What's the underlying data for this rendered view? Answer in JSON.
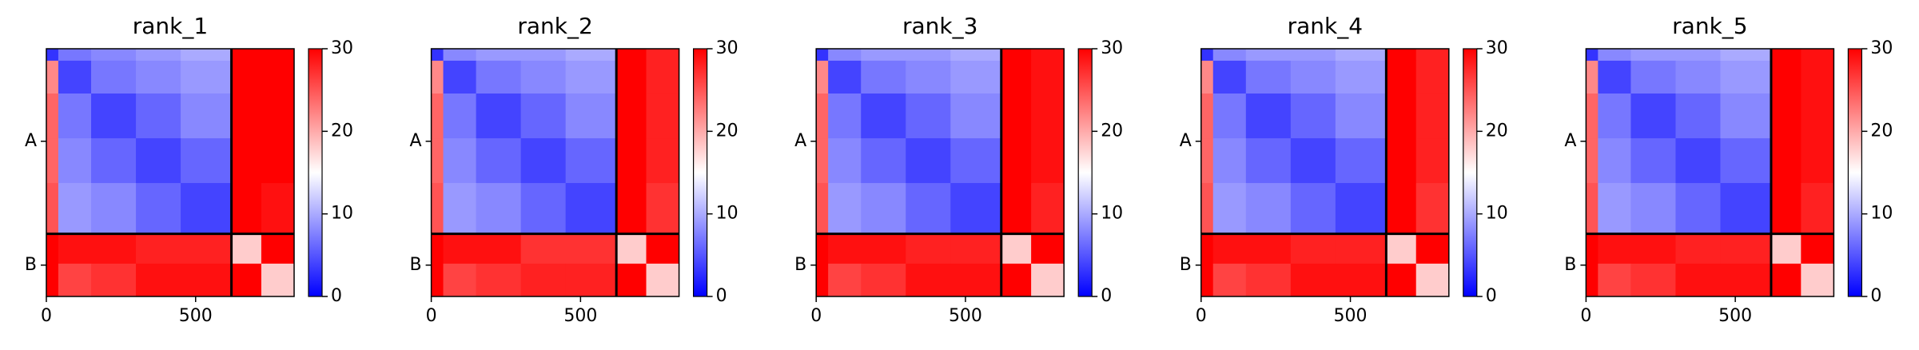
{
  "chart_data": [
    {
      "type": "heatmap",
      "title": "rank_1",
      "edges": [
        0,
        40,
        150,
        300,
        450,
        620,
        720,
        830
      ],
      "values": [
        [
          3,
          7,
          8,
          9,
          10,
          30,
          30
        ],
        [
          22,
          4,
          7,
          8,
          9,
          30,
          30
        ],
        [
          24,
          7,
          4,
          6,
          8,
          30,
          30
        ],
        [
          24,
          8,
          6,
          4,
          6,
          30,
          30
        ],
        [
          25,
          9,
          8,
          6,
          4,
          30,
          29
        ],
        [
          30,
          29,
          29,
          28,
          28,
          18,
          30
        ],
        [
          30,
          26,
          27,
          29,
          29,
          30,
          18
        ]
      ],
      "xlim": [
        0,
        830
      ],
      "ylim": [
        830,
        0
      ],
      "xticks": [
        0,
        500
      ],
      "yticks": [
        {
          "value": 310,
          "label": "A"
        },
        {
          "value": 725,
          "label": "B"
        }
      ],
      "boundaries": [
        620
      ],
      "clim": [
        0,
        30
      ],
      "cticks": [
        0,
        10,
        20,
        30
      ],
      "colormap": "bwr"
    },
    {
      "type": "heatmap",
      "title": "rank_2",
      "edges": [
        0,
        40,
        150,
        300,
        450,
        620,
        720,
        830
      ],
      "values": [
        [
          3,
          8,
          9,
          9,
          10,
          30,
          28
        ],
        [
          22,
          4,
          7,
          8,
          9,
          30,
          28
        ],
        [
          24,
          7,
          4,
          6,
          8,
          30,
          28
        ],
        [
          24,
          8,
          6,
          4,
          6,
          30,
          28
        ],
        [
          25,
          9,
          8,
          6,
          4,
          30,
          27
        ],
        [
          30,
          29,
          29,
          27,
          27,
          18,
          30
        ],
        [
          30,
          26,
          27,
          28,
          28,
          30,
          18
        ]
      ],
      "xlim": [
        0,
        830
      ],
      "ylim": [
        830,
        0
      ],
      "xticks": [
        0,
        500
      ],
      "yticks": [
        {
          "value": 310,
          "label": "A"
        },
        {
          "value": 725,
          "label": "B"
        }
      ],
      "boundaries": [
        620
      ],
      "clim": [
        0,
        30
      ],
      "cticks": [
        0,
        10,
        20,
        30
      ],
      "colormap": "bwr"
    },
    {
      "type": "heatmap",
      "title": "rank_3",
      "edges": [
        0,
        40,
        150,
        300,
        450,
        620,
        720,
        830
      ],
      "values": [
        [
          3,
          8,
          9,
          9,
          10,
          30,
          29
        ],
        [
          22,
          4,
          7,
          8,
          9,
          30,
          29
        ],
        [
          24,
          7,
          4,
          6,
          8,
          30,
          29
        ],
        [
          24,
          8,
          6,
          4,
          6,
          30,
          29
        ],
        [
          25,
          9,
          8,
          6,
          4,
          30,
          28
        ],
        [
          30,
          29,
          29,
          28,
          28,
          18,
          30
        ],
        [
          30,
          26,
          27,
          29,
          29,
          30,
          18
        ]
      ],
      "xlim": [
        0,
        830
      ],
      "ylim": [
        830,
        0
      ],
      "xticks": [
        0,
        500
      ],
      "yticks": [
        {
          "value": 310,
          "label": "A"
        },
        {
          "value": 725,
          "label": "B"
        }
      ],
      "boundaries": [
        620
      ],
      "clim": [
        0,
        30
      ],
      "cticks": [
        0,
        10,
        20,
        30
      ],
      "colormap": "bwr"
    },
    {
      "type": "heatmap",
      "title": "rank_4",
      "edges": [
        0,
        40,
        150,
        300,
        450,
        620,
        720,
        830
      ],
      "values": [
        [
          3,
          8,
          9,
          9,
          10,
          30,
          28
        ],
        [
          22,
          4,
          7,
          8,
          9,
          30,
          28
        ],
        [
          24,
          7,
          4,
          6,
          8,
          30,
          28
        ],
        [
          24,
          8,
          6,
          4,
          6,
          30,
          28
        ],
        [
          25,
          9,
          8,
          6,
          4,
          30,
          27
        ],
        [
          30,
          29,
          29,
          28,
          28,
          18,
          30
        ],
        [
          30,
          26,
          27,
          29,
          29,
          30,
          18
        ]
      ],
      "xlim": [
        0,
        830
      ],
      "ylim": [
        830,
        0
      ],
      "xticks": [
        0,
        500
      ],
      "yticks": [
        {
          "value": 310,
          "label": "A"
        },
        {
          "value": 725,
          "label": "B"
        }
      ],
      "boundaries": [
        620
      ],
      "clim": [
        0,
        30
      ],
      "cticks": [
        0,
        10,
        20,
        30
      ],
      "colormap": "bwr"
    },
    {
      "type": "heatmap",
      "title": "rank_5",
      "edges": [
        0,
        40,
        150,
        300,
        450,
        620,
        720,
        830
      ],
      "values": [
        [
          3,
          8,
          9,
          9,
          10,
          30,
          29
        ],
        [
          22,
          4,
          7,
          8,
          9,
          30,
          29
        ],
        [
          24,
          7,
          4,
          6,
          8,
          30,
          29
        ],
        [
          24,
          8,
          6,
          4,
          6,
          30,
          29
        ],
        [
          25,
          9,
          8,
          6,
          4,
          30,
          28
        ],
        [
          30,
          29,
          29,
          28,
          28,
          18,
          30
        ],
        [
          30,
          26,
          27,
          29,
          29,
          30,
          18
        ]
      ],
      "xlim": [
        0,
        830
      ],
      "ylim": [
        830,
        0
      ],
      "xticks": [
        0,
        500
      ],
      "yticks": [
        {
          "value": 310,
          "label": "A"
        },
        {
          "value": 725,
          "label": "B"
        }
      ],
      "boundaries": [
        620
      ],
      "clim": [
        0,
        30
      ],
      "cticks": [
        0,
        10,
        20,
        30
      ],
      "colormap": "bwr"
    }
  ]
}
